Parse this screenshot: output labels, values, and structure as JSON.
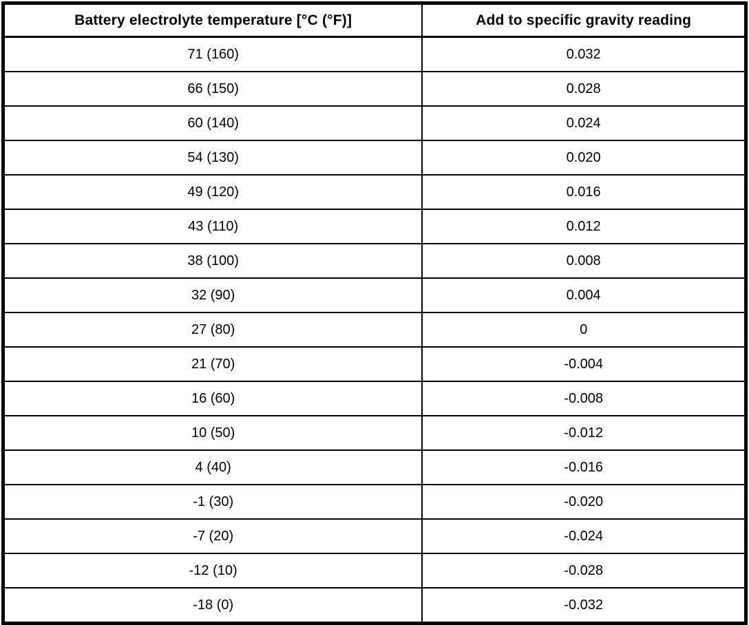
{
  "table": {
    "columns": [
      "Battery electrolyte temperature [°C (°F)]",
      "Add to specific gravity reading"
    ],
    "rows": [
      [
        "71 (160)",
        "0.032"
      ],
      [
        "66 (150)",
        "0.028"
      ],
      [
        "60 (140)",
        "0.024"
      ],
      [
        "54 (130)",
        "0.020"
      ],
      [
        "49 (120)",
        "0.016"
      ],
      [
        "43 (110)",
        "0.012"
      ],
      [
        "38 (100)",
        "0.008"
      ],
      [
        "32 (90)",
        "0.004"
      ],
      [
        "27 (80)",
        "0"
      ],
      [
        "21 (70)",
        "-0.004"
      ],
      [
        "16 (60)",
        "-0.008"
      ],
      [
        "10 (50)",
        "-0.012"
      ],
      [
        "4 (40)",
        "-0.016"
      ],
      [
        "-1 (30)",
        "-0.020"
      ],
      [
        "-7 (20)",
        "-0.024"
      ],
      [
        "-12 (10)",
        "-0.028"
      ],
      [
        "-18 (0)",
        "-0.032"
      ]
    ]
  },
  "colors": {
    "border": "#000000",
    "background": "#ffffff",
    "text": "#000000"
  }
}
